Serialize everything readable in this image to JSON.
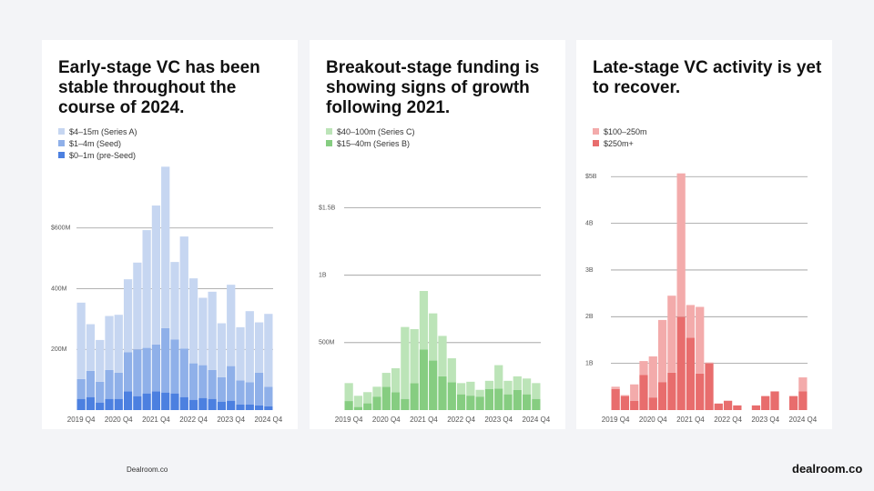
{
  "chart_data": [
    {
      "type": "stacked-bar",
      "title": "Early-stage VC has been stable throughout the course of 2024.",
      "categories": [
        "2019 Q4",
        null,
        null,
        null,
        "2020 Q4",
        null,
        null,
        null,
        "2021 Q4",
        null,
        null,
        null,
        "2022 Q4",
        null,
        null,
        null,
        "2023 Q4",
        null,
        null,
        null,
        "2024 Q4"
      ],
      "series": [
        {
          "name": "$4–15m (Series A)",
          "color": "#c6d6f1",
          "values": [
            252,
            154,
            138,
            178,
            191,
            240,
            286,
            388,
            458,
            532,
            255,
            369,
            280,
            222,
            258,
            178,
            268,
            175,
            234,
            166,
            240
          ]
        },
        {
          "name": "$1–4m (Seed)",
          "color": "#8fb0e9",
          "values": [
            65,
            86,
            68,
            95,
            86,
            129,
            154,
            150,
            154,
            212,
            178,
            160,
            120,
            108,
            95,
            80,
            114,
            80,
            74,
            108,
            65
          ]
        },
        {
          "name": "$0–1m (pre-Seed)",
          "color": "#4c80e0",
          "values": [
            37,
            43,
            25,
            37,
            37,
            62,
            46,
            55,
            62,
            58,
            55,
            43,
            34,
            40,
            37,
            28,
            31,
            18,
            18,
            15,
            12
          ]
        }
      ],
      "ylim": [
        0,
        800
      ],
      "yticks": [
        {
          "value": 200,
          "label": "200M"
        },
        {
          "value": 400,
          "label": "400M"
        },
        {
          "value": 600,
          "label": "$600M"
        }
      ],
      "grid": true
    },
    {
      "type": "stacked-bar",
      "title": "Breakout-stage funding is showing signs of growth following 2021.",
      "categories": [
        "2019 Q4",
        null,
        null,
        null,
        "2020 Q4",
        null,
        null,
        null,
        "2021 Q4",
        null,
        null,
        null,
        "2022 Q4",
        null,
        null,
        null,
        "2023 Q4",
        null,
        null,
        null,
        "2024 Q4"
      ],
      "series": [
        {
          "name": "$40–100m (Series C)",
          "color": "#bce4b8",
          "values": [
            133,
            83,
            83,
            73,
            103,
            177,
            533,
            400,
            433,
            350,
            300,
            177,
            83,
            103,
            50,
            60,
            173,
            100,
            100,
            117,
            117
          ]
        },
        {
          "name": "$15–40m (Series B)",
          "color": "#86cd81",
          "values": [
            67,
            23,
            50,
            100,
            173,
            133,
            83,
            200,
            450,
            367,
            250,
            207,
            117,
            107,
            100,
            157,
            160,
            117,
            150,
            117,
            83
          ]
        }
      ],
      "ylim": [
        0,
        1800
      ],
      "yticks": [
        {
          "value": 500,
          "label": "500M"
        },
        {
          "value": 1000,
          "label": "1B"
        },
        {
          "value": 1500,
          "label": "$1.5B"
        }
      ],
      "grid": true
    },
    {
      "type": "stacked-bar",
      "title": "Late-stage VC activity is yet to recover.",
      "categories": [
        "2019 Q4",
        null,
        null,
        null,
        "2020 Q4",
        null,
        null,
        null,
        "2021 Q4",
        null,
        null,
        null,
        "2022 Q4",
        null,
        null,
        null,
        "2023 Q4",
        null,
        null,
        null,
        "2024 Q4"
      ],
      "series": [
        {
          "name": "$100–250m",
          "color": "#f3abab",
          "values": [
            0.05,
            0.02,
            0.35,
            0.3,
            0.88,
            1.33,
            1.65,
            3.07,
            0.7,
            1.43,
            0.02,
            0,
            0,
            0,
            0,
            0,
            0,
            0,
            0,
            0,
            0.3
          ]
        },
        {
          "name": "$250m+",
          "color": "#e86d6d",
          "values": [
            0.45,
            0.3,
            0.2,
            0.75,
            0.27,
            0.6,
            0.8,
            2.0,
            1.55,
            0.78,
            1.0,
            0.14,
            0.2,
            0.1,
            0,
            0.1,
            0.3,
            0.4,
            0,
            0.3,
            0.4
          ]
        }
      ],
      "ylim": [
        0,
        5.2
      ],
      "yticks": [
        {
          "value": 1,
          "label": "1B"
        },
        {
          "value": 2,
          "label": "2B"
        },
        {
          "value": 3,
          "label": "3B"
        },
        {
          "value": 4,
          "label": "4B"
        },
        {
          "value": 5,
          "label": "$5B"
        }
      ],
      "grid": true
    }
  ],
  "footer": {
    "source": "Dealroom.co",
    "logo": "dealroom.co"
  }
}
